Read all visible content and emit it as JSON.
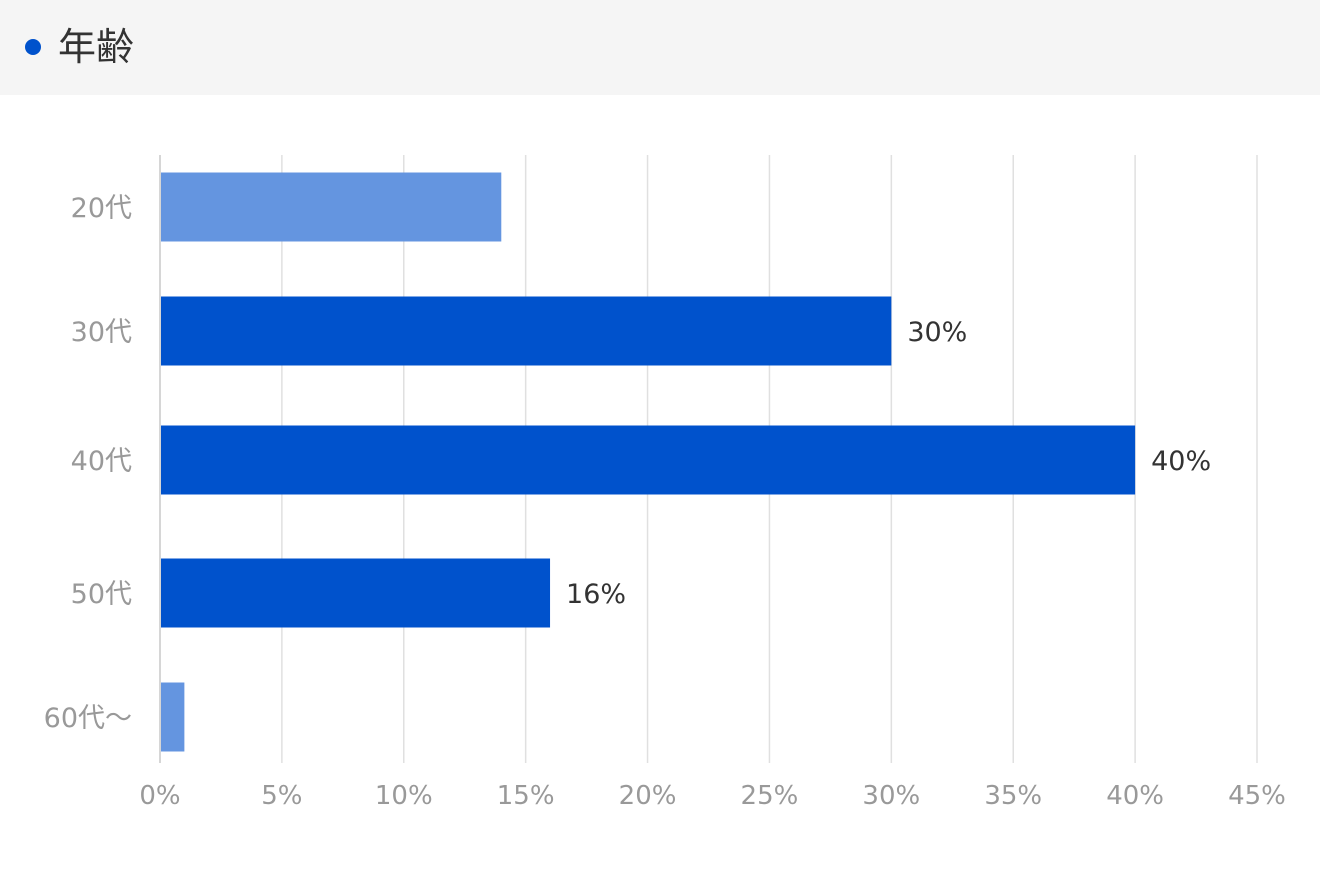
{
  "section": {
    "title": "年齢",
    "marker_color": "#0052cc"
  },
  "chart_data": {
    "type": "bar",
    "orientation": "horizontal",
    "categories": [
      "20代",
      "30代",
      "40代",
      "50代",
      "60代〜"
    ],
    "values": [
      14,
      30,
      40,
      16,
      1
    ],
    "value_labels": [
      "",
      "30%",
      "40%",
      "16%",
      ""
    ],
    "bar_colors": [
      "#6495e0",
      "#0052cc",
      "#0052cc",
      "#0052cc",
      "#6495e0"
    ],
    "xlim": [
      0,
      45
    ],
    "xticks": [
      0,
      5,
      10,
      15,
      20,
      25,
      30,
      35,
      40,
      45
    ],
    "xtick_labels": [
      "0%",
      "5%",
      "10%",
      "15%",
      "20%",
      "25%",
      "30%",
      "35%",
      "40%",
      "45%"
    ],
    "grid": true,
    "gridline_color": "#e0e0e0",
    "tick_label_color": "#999999",
    "value_label_color": "#333333"
  }
}
